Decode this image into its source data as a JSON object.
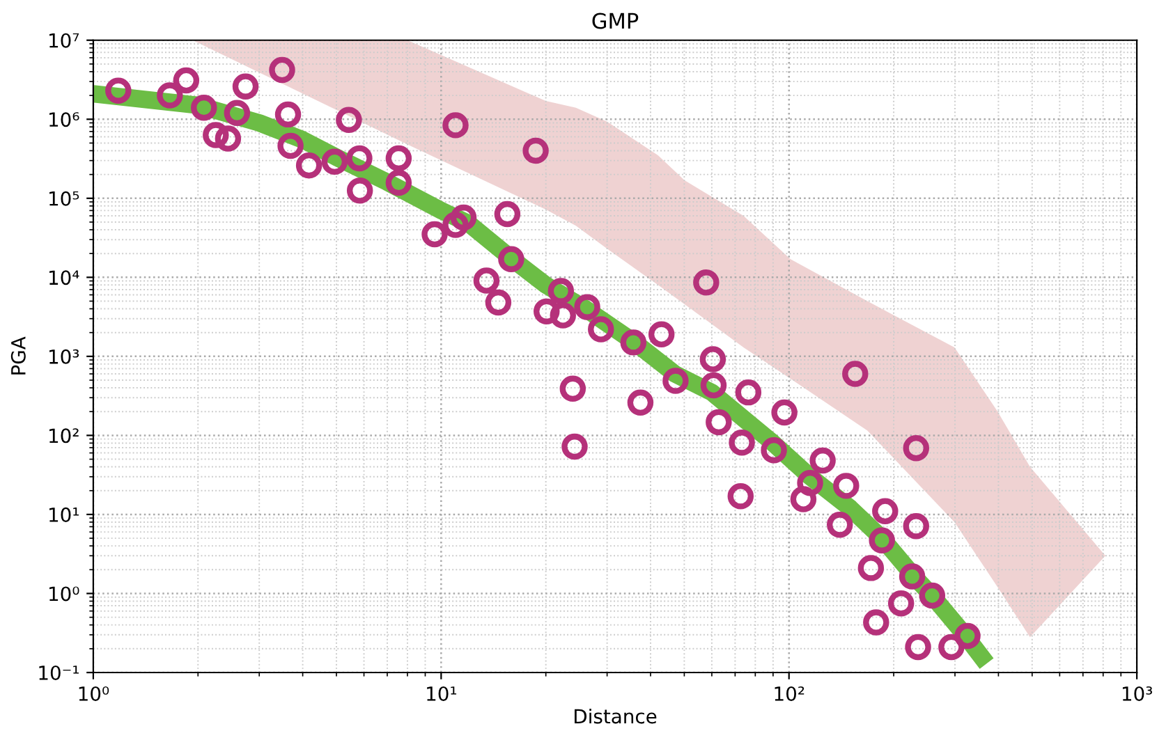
{
  "chart_data": {
    "type": "scatter",
    "title": "GMP",
    "xlabel": "Distance",
    "ylabel": "PGA",
    "log": "xy",
    "grid": true,
    "xlim": [
      1,
      1000
    ],
    "ylim": [
      0.1,
      10000000
    ],
    "xticks": [
      {
        "value": 1,
        "label": "10⁰"
      },
      {
        "value": 10,
        "label": "10¹"
      },
      {
        "value": 100,
        "label": "10²"
      },
      {
        "value": 1000,
        "label": "10³"
      }
    ],
    "yticks": [
      {
        "value": 0.1,
        "label": "10⁻¹"
      },
      {
        "value": 1,
        "label": "10⁰"
      },
      {
        "value": 10,
        "label": "10¹"
      },
      {
        "value": 100,
        "label": "10²"
      },
      {
        "value": 1000,
        "label": "10³"
      },
      {
        "value": 10000,
        "label": "10⁴"
      },
      {
        "value": 100000,
        "label": "10⁵"
      },
      {
        "value": 1000000,
        "label": "10⁶"
      },
      {
        "value": 10000000,
        "label": "10⁷"
      }
    ],
    "series": [
      {
        "type": "area",
        "color": "#e9c3c3",
        "x": [
          1.93,
          8,
          20,
          24.4,
          30,
          42,
          50,
          74,
          101,
          168,
          299,
          398,
          493,
          812
        ],
        "values": [
          null,
          null,
          null,
          null,
          null,
          null,
          null,
          null,
          null,
          null,
          null,
          null,
          null,
          null
        ],
        "upper": [
          10000000,
          10000000,
          1700000,
          1400000,
          930000,
          350000,
          170000,
          60000,
          17000,
          5000,
          1300,
          200,
          40,
          3
        ],
        "lower": [
          10000000,
          480000,
          72000,
          45000,
          23000,
          8000,
          4600,
          1300,
          520,
          115,
          8,
          1.2,
          0.28,
          3
        ]
      },
      {
        "type": "line",
        "color": "#6cbd45",
        "x": [
          1,
          2,
          3,
          4,
          5,
          7,
          10,
          12,
          16,
          20,
          26,
          36,
          47,
          60,
          90,
          115,
          150,
          185,
          230,
          260,
          320,
          370
        ],
        "values": [
          2100000,
          1500000,
          900000,
          550000,
          330000,
          160000,
          70000,
          48000,
          17000,
          8000,
          4000,
          1500,
          600,
          350,
          80,
          30,
          12,
          5,
          1.6,
          0.9,
          0.3,
          0.13
        ]
      },
      {
        "marker": "circle",
        "color": "#b5317a",
        "x": [
          1.18,
          1.66,
          1.85,
          2.08,
          2.25,
          2.44,
          2.59,
          2.74,
          3.49,
          3.63,
          3.69,
          4.17,
          4.94,
          5.43,
          5.82,
          5.84,
          7.55,
          7.55,
          9.58,
          11.0,
          11.0,
          11.6,
          15.5,
          15.9,
          13.5,
          14.6,
          18.7,
          20.1,
          22.1,
          22.4,
          26.3,
          28.8,
          35.7,
          43,
          57.8,
          60.4,
          23.9,
          24.2,
          37.4,
          47.2,
          60.7,
          76.4,
          62.8,
          97,
          73.2,
          90.5,
          72.6,
          155,
          125,
          115,
          110,
          146,
          232,
          140,
          189,
          185,
          232,
          172,
          226,
          210,
          258,
          178,
          235,
          293,
          326
        ],
        "values": [
          2300000,
          2000000,
          3100000,
          1400000,
          630000,
          570000,
          1200000,
          2600000,
          4200000,
          1150000,
          460000,
          260000,
          290000,
          980000,
          320000,
          125000,
          320000,
          157000,
          35000,
          840000,
          46000,
          57000,
          63000,
          17000,
          9100,
          4800,
          400000,
          3700,
          6700,
          3300,
          4200,
          2200,
          1500,
          1900,
          8600,
          920,
          390,
          72,
          260,
          490,
          430,
          350,
          147,
          195,
          81,
          65,
          17,
          600,
          48,
          25,
          15.6,
          23,
          69,
          7.4,
          11,
          4.7,
          7.1,
          2.1,
          1.64,
          0.75,
          0.94,
          0.43,
          0.21,
          0.21,
          0.29
        ]
      }
    ]
  }
}
